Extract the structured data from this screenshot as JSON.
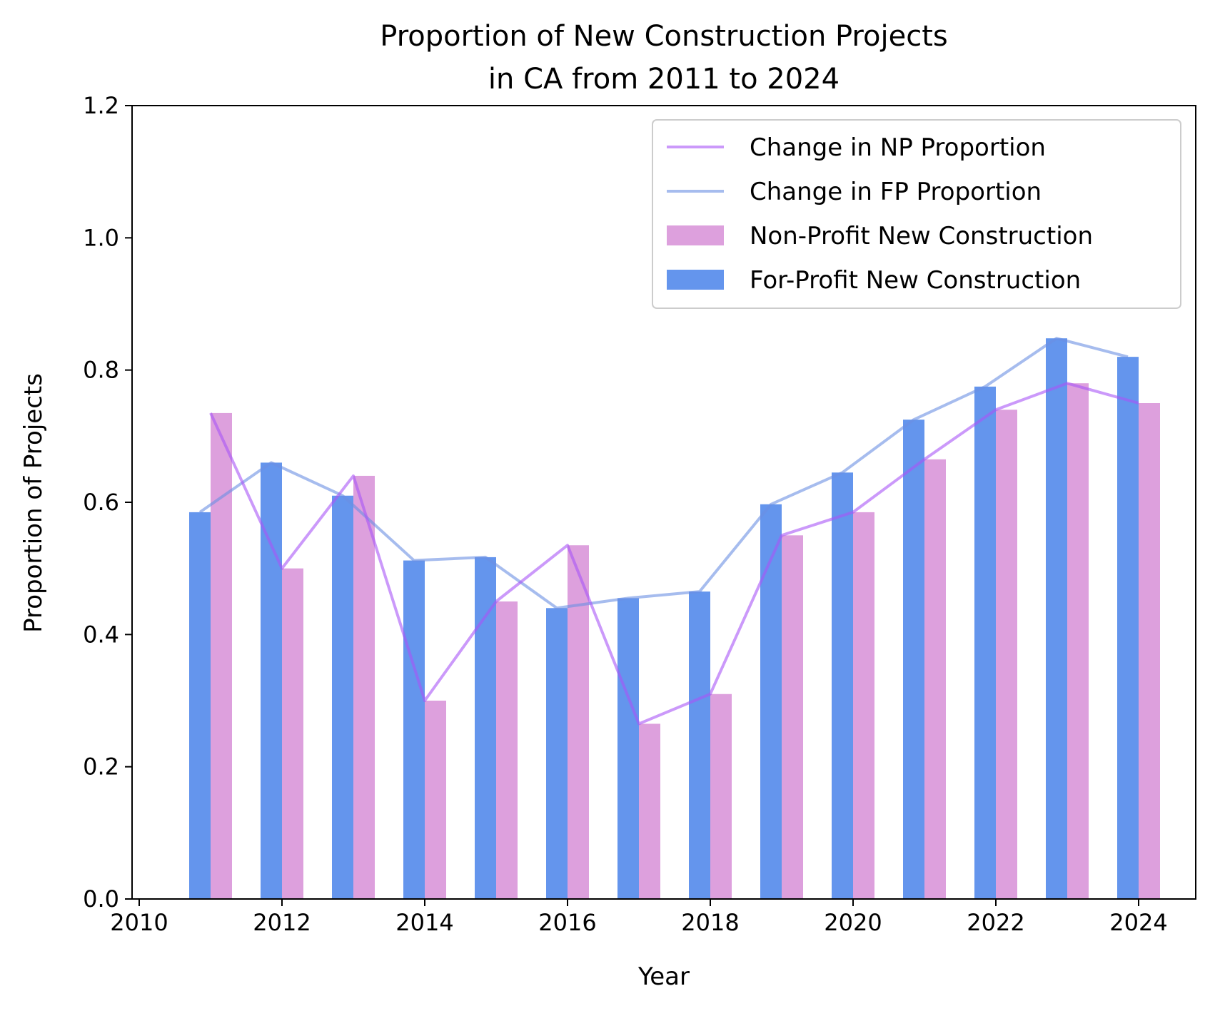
{
  "chart_data": {
    "type": "bar",
    "title_lines": [
      "Proportion of New Construction Projects",
      "in CA from 2011 to 2024"
    ],
    "xlabel": "Year",
    "ylabel": "Proportion of Projects",
    "x": [
      2011,
      2012,
      2013,
      2014,
      2015,
      2016,
      2017,
      2018,
      2019,
      2020,
      2021,
      2022,
      2023,
      2024
    ],
    "xlim": [
      2009.9,
      2024.8
    ],
    "ylim": [
      0,
      1.2
    ],
    "xticks": [
      "2010",
      "2012",
      "2014",
      "2016",
      "2018",
      "2020",
      "2022",
      "2024"
    ],
    "yticks": [
      "0.0",
      "0.2",
      "0.4",
      "0.6",
      "0.8",
      "1.0",
      "1.2"
    ],
    "grid": false,
    "legend_position": "top-right",
    "series": [
      {
        "name": "Change in NP Proportion",
        "kind": "line",
        "color": "#a855f7",
        "values": [
          0.735,
          0.5,
          0.64,
          0.3,
          0.45,
          0.535,
          0.265,
          0.31,
          0.55,
          0.585,
          0.665,
          0.74,
          0.78,
          0.75
        ]
      },
      {
        "name": "Change in FP Proportion",
        "kind": "line",
        "color": "#6b8fe3",
        "values": [
          0.585,
          0.66,
          0.61,
          0.512,
          0.517,
          0.44,
          0.455,
          0.465,
          0.597,
          0.645,
          0.725,
          0.775,
          0.848,
          0.82
        ]
      },
      {
        "name": "Non-Profit New Construction",
        "kind": "bar",
        "color": "#dda0dd",
        "values": [
          0.735,
          0.5,
          0.64,
          0.3,
          0.45,
          0.535,
          0.265,
          0.31,
          0.55,
          0.585,
          0.665,
          0.74,
          0.78,
          0.75
        ]
      },
      {
        "name": "For-Profit New Construction",
        "kind": "bar",
        "color": "#6495ed",
        "values": [
          0.585,
          0.66,
          0.61,
          0.512,
          0.517,
          0.44,
          0.455,
          0.465,
          0.597,
          0.645,
          0.725,
          0.775,
          0.848,
          0.82
        ]
      }
    ]
  }
}
